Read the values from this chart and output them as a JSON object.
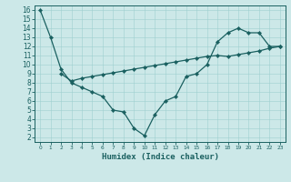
{
  "xlabel": "Humidex (Indice chaleur)",
  "bg_color": "#cce8e8",
  "line_color": "#1a6060",
  "grid_color": "#9ecfcf",
  "xlim": [
    -0.5,
    23.5
  ],
  "ylim": [
    1.5,
    16.5
  ],
  "xticks": [
    0,
    1,
    2,
    3,
    4,
    5,
    6,
    7,
    8,
    9,
    10,
    11,
    12,
    13,
    14,
    15,
    16,
    17,
    18,
    19,
    20,
    21,
    22,
    23
  ],
  "yticks": [
    2,
    3,
    4,
    5,
    6,
    7,
    8,
    9,
    10,
    11,
    12,
    13,
    14,
    15,
    16
  ],
  "zigzag_x": [
    0,
    1,
    2,
    3,
    4,
    5,
    6,
    7,
    8,
    9,
    10,
    11,
    12,
    13,
    14,
    15,
    16,
    17,
    18,
    19,
    20,
    21,
    22,
    23
  ],
  "zigzag_y": [
    16,
    13,
    9.5,
    8.0,
    7.5,
    7.0,
    6.5,
    5.0,
    4.8,
    3.0,
    2.2,
    4.5,
    6.0,
    6.5,
    8.7,
    9.0,
    10.0,
    12.5,
    13.5,
    14.0,
    13.5,
    13.5,
    12.0,
    12.0
  ],
  "straight_x": [
    2,
    3,
    4,
    5,
    6,
    7,
    8,
    9,
    10,
    11,
    12,
    13,
    14,
    15,
    16,
    17,
    18,
    19,
    20,
    21,
    22,
    23
  ],
  "straight_y": [
    9.0,
    8.2,
    8.5,
    8.7,
    8.9,
    9.1,
    9.3,
    9.5,
    9.7,
    9.9,
    10.1,
    10.3,
    10.5,
    10.7,
    10.9,
    11.0,
    10.9,
    11.1,
    11.3,
    11.5,
    11.8,
    12.0
  ],
  "tick_fontsize": 5.5,
  "xlabel_fontsize": 6.5
}
